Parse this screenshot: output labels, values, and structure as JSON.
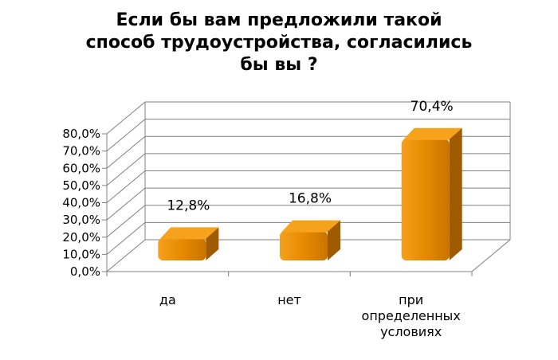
{
  "colors": {
    "bar_front": "#E68A00",
    "bar_top": "#F7A21B",
    "bar_side": "#A05A00",
    "grid": "#808080"
  },
  "chart_data": {
    "type": "bar",
    "title_lines": [
      "Если бы вам предложили такой",
      "способ трудоустройства, согласились",
      "бы вы ?"
    ],
    "categories": [
      {
        "lines": [
          "да"
        ]
      },
      {
        "lines": [
          "нет"
        ]
      },
      {
        "lines": [
          "при",
          "определенных",
          "условиях"
        ]
      }
    ],
    "values": [
      12.8,
      16.8,
      70.4
    ],
    "data_labels": [
      "12,8%",
      "16,8%",
      "70,4%"
    ],
    "ytick_values": [
      0,
      10,
      20,
      30,
      40,
      50,
      60,
      70,
      80
    ],
    "ytick_labels": [
      "0,0%",
      "10,0%",
      "20,0%",
      "30,0%",
      "40,0%",
      "50,0%",
      "60,0%",
      "70,0%",
      "80,0%"
    ],
    "ylim": [
      0,
      80
    ],
    "grid": true,
    "legend": "none",
    "three_d": true
  }
}
